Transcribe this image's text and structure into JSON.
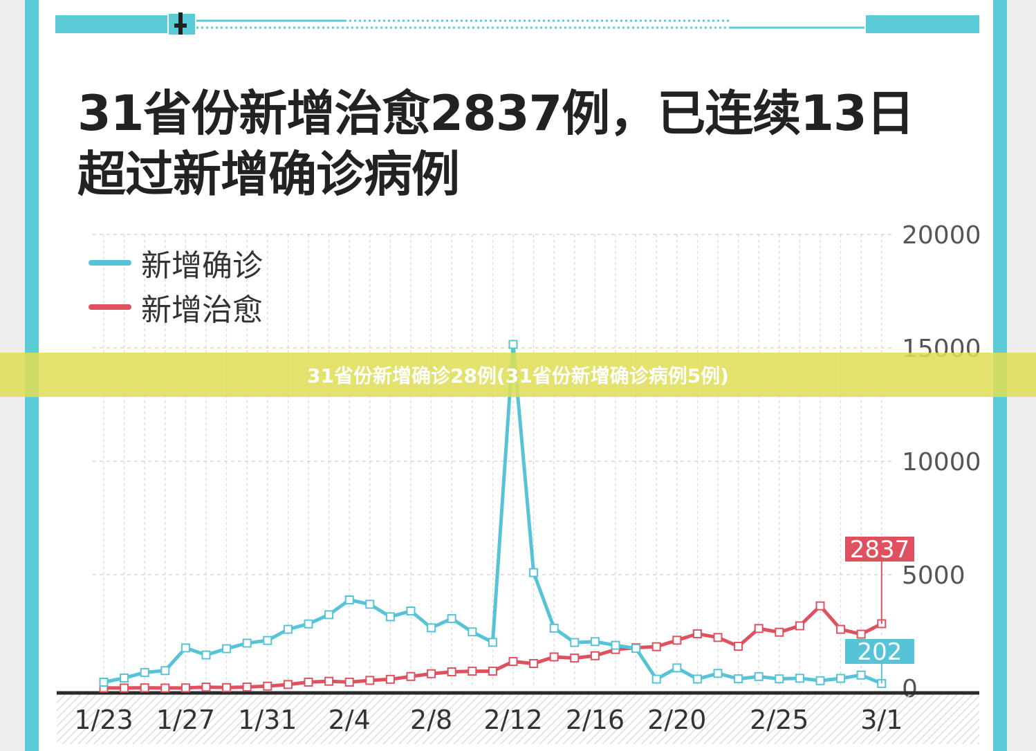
{
  "title": "31省份新增治愈2837例，已连续13日超过新增确诊病例",
  "banner": "31省份新增确诊28例(31省份新增确诊病例5例)",
  "colors": {
    "frame": "#5bcbd8",
    "confirmed": "#56c4d6",
    "cured": "#e0515f"
  },
  "chart_data": {
    "type": "line",
    "title": "31省份新增治愈2837例，已连续13日超过新增确诊病例",
    "ylim": [
      0,
      20000
    ],
    "y_ticks": [
      "0",
      "5000",
      "10000",
      "15000",
      "20000"
    ],
    "x_tick_labels": [
      "1/23",
      "1/27",
      "1/31",
      "2/4",
      "2/8",
      "2/12",
      "2/16",
      "2/20",
      "2/25",
      "3/1"
    ],
    "x_tick_index": [
      0,
      4,
      8,
      12,
      16,
      20,
      24,
      28,
      33,
      38
    ],
    "grid": true,
    "legend": "top-left",
    "series": [
      {
        "name": "新增确诊",
        "end_label": "202",
        "values": [
          259,
          444,
          688,
          769,
          1771,
          1459,
          1737,
          1981,
          2099,
          2590,
          2829,
          3235,
          3887,
          3694,
          3143,
          3399,
          2656,
          3062,
          2478,
          2015,
          15152,
          5090,
          2641,
          2009,
          2048,
          1886,
          1749,
          394,
          889,
          397,
          648,
          409,
          508,
          406,
          433,
          327,
          427,
          573,
          202
        ]
      },
      {
        "name": "新增治愈",
        "end_label": "2837",
        "values": [
          6,
          3,
          11,
          2,
          9,
          43,
          21,
          47,
          85,
          157,
          262,
          300,
          262,
          339,
          387,
          510,
          632,
          716,
          744,
          745,
          1171,
          1081,
          1373,
          1323,
          1425,
          1701,
          1779,
          1824,
          2109,
          2393,
          2231,
          1841,
          2626,
          2462,
          2745,
          3622,
          2589,
          2376,
          2837
        ]
      }
    ]
  }
}
